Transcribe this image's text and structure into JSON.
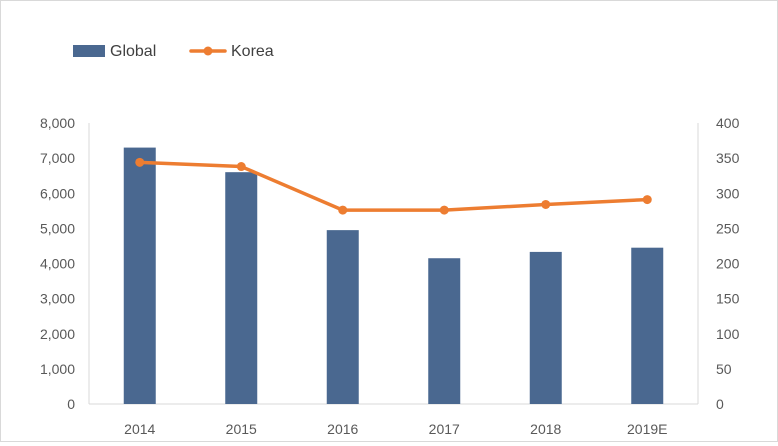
{
  "chart_data": {
    "type": "bar+line",
    "categories": [
      "2014",
      "2015",
      "2016",
      "2017",
      "2018",
      "2019E"
    ],
    "series": [
      {
        "name": "Global",
        "type": "bar",
        "axis": "left",
        "color": "#4a6890",
        "values": [
          7300,
          6600,
          4950,
          4150,
          4330,
          4450
        ]
      },
      {
        "name": "Korea",
        "type": "line",
        "axis": "right",
        "color": "#ed7d31",
        "values": [
          344,
          338,
          276,
          276,
          284,
          291
        ]
      }
    ],
    "y_left": {
      "min": 0,
      "max": 8000,
      "step": 1000,
      "tick_labels": [
        "0",
        "1,000",
        "2,000",
        "3,000",
        "4,000",
        "5,000",
        "6,000",
        "7,000",
        "8,000"
      ]
    },
    "y_right": {
      "min": 0,
      "max": 400,
      "step": 50,
      "tick_labels": [
        "0",
        "50",
        "100",
        "150",
        "200",
        "250",
        "300",
        "350",
        "400"
      ]
    },
    "legend_position": "top-left",
    "grid": false
  }
}
